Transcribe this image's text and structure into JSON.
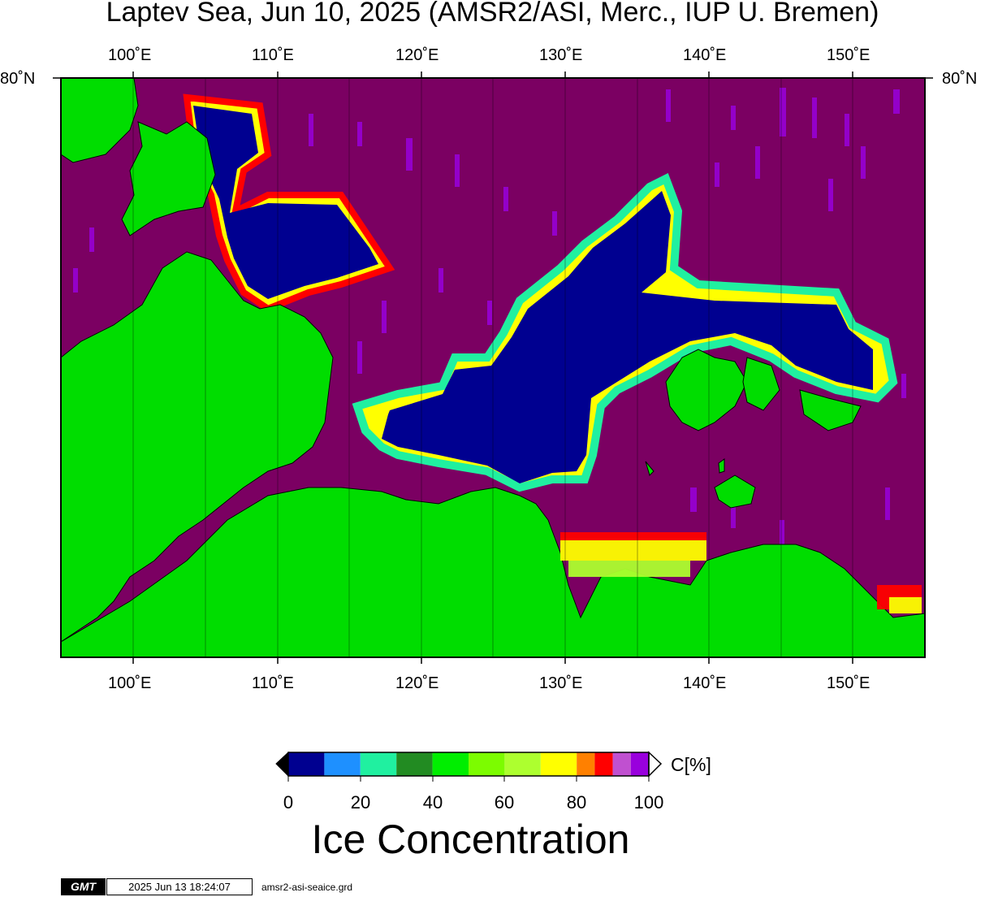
{
  "title": "Laptev Sea, Jun 10, 2025 (AMSR2/ASI, Merc., IUP U. Bremen)",
  "lat_label": "80˚N",
  "lon_labels": [
    "100˚E",
    "110˚E",
    "120˚E",
    "130˚E",
    "140˚E",
    "150˚E"
  ],
  "colorbar": {
    "title": "Ice Concentration",
    "unit": "C[%]",
    "ticks": [
      "0",
      "20",
      "40",
      "60",
      "80",
      "100"
    ],
    "colors": [
      "#000090",
      "#1e90ff",
      "#20f0a0",
      "#228b22",
      "#00ee00",
      "#7cfc00",
      "#adff2f",
      "#ffff00",
      "#ff8000",
      "#ff0000",
      "#c050d0",
      "#9900dd"
    ]
  },
  "colors": {
    "land": "#00dd00",
    "open_water": "#7b0062",
    "ice": "#000090"
  },
  "footer": {
    "logo": "GMT",
    "timestamp": "2025 Jun 13 18:24:07",
    "grid_file": "amsr2-asi-seaice.grd"
  }
}
